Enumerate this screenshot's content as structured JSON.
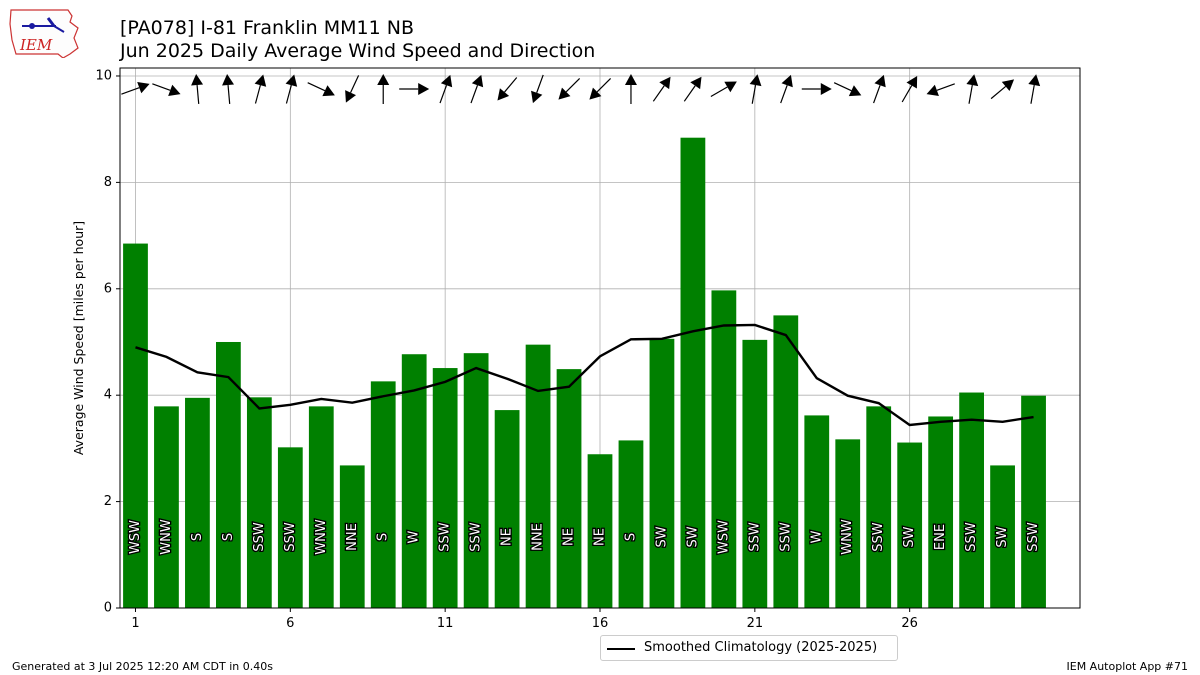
{
  "logo": {
    "text": "IEM"
  },
  "title": {
    "line1": "[PA078] I-81 Franklin MM11 NB",
    "line2": "Jun 2025 Daily Average Wind Speed and Direction"
  },
  "legend": {
    "label": "Smoothed Climatology (2025-2025)"
  },
  "footer": {
    "left": "Generated at 3 Jul 2025 12:20 AM CDT in 0.40s",
    "right": "IEM Autoplot App #71"
  },
  "colors": {
    "bar": "#008000",
    "line": "#000000",
    "grid": "#b0b0b0"
  },
  "chart_data": {
    "type": "bar",
    "ylabel": "Average Wind Speed [miles per hour]",
    "ylim": [
      0,
      10.15
    ],
    "xlim": [
      0.5,
      31.5
    ],
    "xticks": [
      1,
      6,
      11,
      16,
      21,
      26
    ],
    "yticks": [
      0,
      2,
      4,
      6,
      8,
      10
    ],
    "grid": true,
    "legend_position": "bottom-center",
    "days": [
      1,
      2,
      3,
      4,
      5,
      6,
      7,
      8,
      9,
      10,
      11,
      12,
      13,
      14,
      15,
      16,
      17,
      18,
      19,
      20,
      21,
      22,
      23,
      24,
      25,
      26,
      27,
      28,
      29,
      30
    ],
    "series": [
      {
        "type": "bar",
        "values": [
          6.85,
          3.79,
          3.95,
          5.0,
          3.96,
          3.02,
          3.79,
          2.68,
          4.26,
          4.77,
          4.51,
          4.79,
          3.72,
          4.95,
          4.49,
          2.89,
          3.15,
          5.06,
          8.84,
          5.97,
          5.04,
          5.5,
          3.62,
          3.17,
          3.79,
          3.11,
          3.6,
          4.05,
          2.68,
          3.99
        ],
        "directions": [
          "WSW",
          "WNW",
          "S",
          "S",
          "SSW",
          "SSW",
          "WNW",
          "NNE",
          "S",
          "W",
          "SSW",
          "SSW",
          "NE",
          "NNE",
          "NE",
          "NE",
          "S",
          "SW",
          "SW",
          "WSW",
          "SSW",
          "SSW",
          "W",
          "WNW",
          "SSW",
          "SW",
          "ENE",
          "SSW",
          "SW",
          "SSW"
        ],
        "arrow_degrees": [
          250,
          290,
          175,
          175,
          195,
          195,
          295,
          25,
          180,
          270,
          200,
          200,
          40,
          20,
          45,
          45,
          180,
          215,
          215,
          240,
          190,
          200,
          270,
          295,
          200,
          210,
          70,
          190,
          230,
          190
        ]
      },
      {
        "type": "line",
        "name": "Smoothed Climatology (2025-2025)",
        "values": [
          4.9,
          4.72,
          4.43,
          4.34,
          3.75,
          3.82,
          3.93,
          3.86,
          3.98,
          4.09,
          4.25,
          4.51,
          4.31,
          4.08,
          4.16,
          4.73,
          5.05,
          5.06,
          5.2,
          5.31,
          5.32,
          5.13,
          4.32,
          3.99,
          3.85,
          3.44,
          3.5,
          3.54,
          3.5,
          3.59
        ]
      }
    ]
  }
}
